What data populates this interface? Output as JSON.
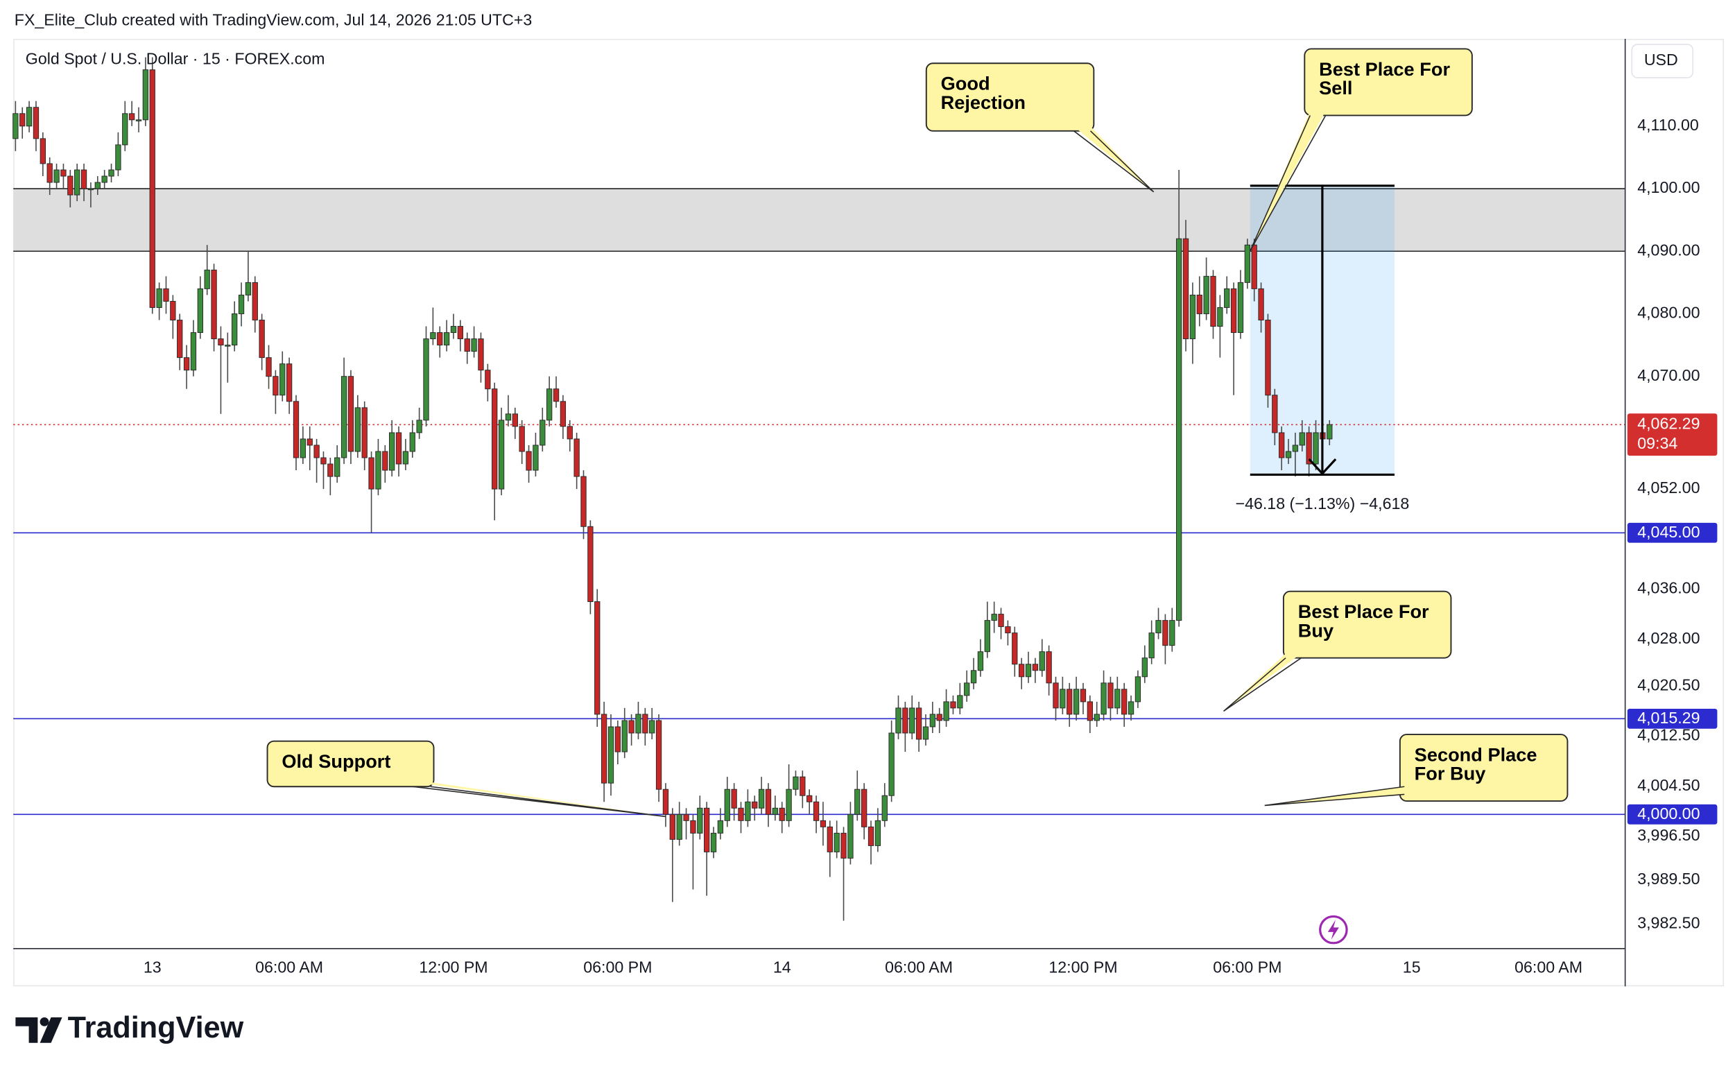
{
  "header": {
    "caption": "FX_Elite_Club created with TradingView.com, Jul 14, 2026 21:05 UTC+3"
  },
  "footer": {
    "brand": "TradingView"
  },
  "chart_data": {
    "type": "candlestick",
    "title": "Gold Spot / U.S. Dollar · 15 · FOREX.com",
    "currency": "USD",
    "up_color": "#3b8c3b",
    "down_color": "#c62828",
    "level_color": "#2b2bd0",
    "last_color": "#d32f2f",
    "zone_color": "#dedede",
    "grid": false,
    "xlim": [
      -0.32,
      235.2
    ],
    "ylim": [
      3978.55,
      4123.94
    ],
    "xticks": [
      {
        "value": 20,
        "label": "13"
      },
      {
        "value": 40,
        "label": "06:00 AM"
      },
      {
        "value": 64,
        "label": "12:00 PM"
      },
      {
        "value": 88,
        "label": "06:00 PM"
      },
      {
        "value": 112,
        "label": "14"
      },
      {
        "value": 132,
        "label": "06:00 AM"
      },
      {
        "value": 156,
        "label": "12:00 PM"
      },
      {
        "value": 180,
        "label": "06:00 PM"
      },
      {
        "value": 204,
        "label": "15"
      },
      {
        "value": 224,
        "label": "06:00 AM"
      }
    ],
    "yticks": [
      {
        "value": 4110,
        "label": "4,110.00"
      },
      {
        "value": 4100,
        "label": "4,100.00"
      },
      {
        "value": 4090,
        "label": "4,090.00"
      },
      {
        "value": 4080,
        "label": "4,080.00"
      },
      {
        "value": 4070,
        "label": "4,070.00"
      },
      {
        "value": 4052,
        "label": "4,052.00"
      },
      {
        "value": 4036,
        "label": "4,036.00"
      },
      {
        "value": 4028,
        "label": "4,028.00"
      },
      {
        "value": 4020.5,
        "label": "4,020.50"
      },
      {
        "value": 4012.5,
        "label": "4,012.50"
      },
      {
        "value": 4004.5,
        "label": "4,004.50"
      },
      {
        "value": 3996.5,
        "label": "3,996.50"
      },
      {
        "value": 3989.5,
        "label": "3,989.50"
      },
      {
        "value": 3982.5,
        "label": "3,982.50"
      }
    ],
    "zone": [
      4090,
      4100
    ],
    "levels": [
      {
        "value": 4045,
        "label": "4,045.00"
      },
      {
        "value": 4015.29,
        "label": "4,015.29"
      },
      {
        "value": 4000,
        "label": "4,000.00"
      }
    ],
    "last_price": {
      "value": 4062.29,
      "label": "4,062.29",
      "countdown": "09:34"
    },
    "measure": {
      "top": 4100.47,
      "bottom": 4054.29,
      "start": 180.4,
      "end": 201.5,
      "label": "−46.18 (−1.13%) −4,618"
    },
    "annotations": [
      "Good Rejection",
      "Best Place For Sell",
      "Best Place For Buy",
      "Second Place For Buy",
      "Old Support"
    ],
    "ohlc": [
      [
        4108,
        4114,
        4106,
        4112
      ],
      [
        4112,
        4113,
        4108,
        4110
      ],
      [
        4110,
        4114,
        4109,
        4113
      ],
      [
        4113,
        4114,
        4106,
        4108
      ],
      [
        4108,
        4109,
        4102,
        4104
      ],
      [
        4104,
        4105,
        4099,
        4101
      ],
      [
        4101,
        4104,
        4100,
        4103
      ],
      [
        4103,
        4104,
        4100,
        4102
      ],
      [
        4102,
        4103,
        4097,
        4099
      ],
      [
        4099,
        4104,
        4098,
        4103
      ],
      [
        4103,
        4104,
        4098,
        4100
      ],
      [
        4100,
        4101,
        4097,
        4100
      ],
      [
        4100,
        4102,
        4099,
        4101
      ],
      [
        4101,
        4103,
        4100,
        4102
      ],
      [
        4102,
        4104,
        4101,
        4103
      ],
      [
        4103,
        4109,
        4102,
        4107
      ],
      [
        4107,
        4114,
        4106,
        4112
      ],
      [
        4112,
        4114,
        4110,
        4111
      ],
      [
        4111,
        4113,
        4109,
        4111
      ],
      [
        4111,
        4121,
        4110,
        4119
      ],
      [
        4119,
        4121,
        4080,
        4081
      ],
      [
        4081,
        4085,
        4079,
        4084
      ],
      [
        4084,
        4086,
        4080,
        4082
      ],
      [
        4082,
        4083,
        4076,
        4079
      ],
      [
        4079,
        4080,
        4071,
        4073
      ],
      [
        4073,
        4075,
        4068,
        4071
      ],
      [
        4071,
        4079,
        4070,
        4077
      ],
      [
        4077,
        4086,
        4076,
        4084
      ],
      [
        4084,
        4091,
        4083,
        4087
      ],
      [
        4087,
        4088,
        4074,
        4076
      ],
      [
        4076,
        4078,
        4064,
        4075
      ],
      [
        4075,
        4077,
        4069,
        4075
      ],
      [
        4075,
        4082,
        4074,
        4080
      ],
      [
        4080,
        4085,
        4078,
        4083
      ],
      [
        4083,
        4090,
        4082,
        4085
      ],
      [
        4085,
        4086,
        4077,
        4079
      ],
      [
        4079,
        4080,
        4071,
        4073
      ],
      [
        4073,
        4075,
        4068,
        4070
      ],
      [
        4070,
        4071,
        4064,
        4067
      ],
      [
        4067,
        4074,
        4066,
        4072
      ],
      [
        4072,
        4073,
        4064,
        4066
      ],
      [
        4066,
        4067,
        4055,
        4057
      ],
      [
        4057,
        4062,
        4056,
        4060
      ],
      [
        4060,
        4062,
        4055,
        4059
      ],
      [
        4059,
        4060,
        4053,
        4057
      ],
      [
        4057,
        4058,
        4052,
        4056
      ],
      [
        4056,
        4057,
        4051,
        4054
      ],
      [
        4054,
        4059,
        4053,
        4057
      ],
      [
        4057,
        4073,
        4056,
        4070
      ],
      [
        4070,
        4071,
        4056,
        4058
      ],
      [
        4058,
        4067,
        4057,
        4065
      ],
      [
        4065,
        4066,
        4055,
        4057
      ],
      [
        4057,
        4058,
        4045,
        4052
      ],
      [
        4052,
        4060,
        4051,
        4058
      ],
      [
        4058,
        4059,
        4053,
        4055
      ],
      [
        4055,
        4063,
        4054,
        4061
      ],
      [
        4061,
        4062,
        4054,
        4056
      ],
      [
        4056,
        4060,
        4055,
        4058
      ],
      [
        4058,
        4063,
        4057,
        4061
      ],
      [
        4061,
        4065,
        4060,
        4063
      ],
      [
        4063,
        4078,
        4062,
        4076
      ],
      [
        4076,
        4081,
        4075,
        4077
      ],
      [
        4077,
        4078,
        4073,
        4075
      ],
      [
        4075,
        4079,
        4074,
        4077
      ],
      [
        4077,
        4080,
        4076,
        4078
      ],
      [
        4078,
        4079,
        4074,
        4076
      ],
      [
        4076,
        4077,
        4072,
        4074
      ],
      [
        4074,
        4078,
        4073,
        4076
      ],
      [
        4076,
        4077,
        4069,
        4071
      ],
      [
        4071,
        4072,
        4066,
        4068
      ],
      [
        4068,
        4069,
        4047,
        4052
      ],
      [
        4052,
        4065,
        4051,
        4063
      ],
      [
        4063,
        4067,
        4062,
        4064
      ],
      [
        4064,
        4065,
        4060,
        4062
      ],
      [
        4062,
        4063,
        4056,
        4058
      ],
      [
        4058,
        4059,
        4053,
        4055
      ],
      [
        4055,
        4061,
        4054,
        4059
      ],
      [
        4059,
        4065,
        4058,
        4063
      ],
      [
        4063,
        4070,
        4062,
        4068
      ],
      [
        4068,
        4070,
        4065,
        4066
      ],
      [
        4066,
        4067,
        4060,
        4062
      ],
      [
        4062,
        4063,
        4058,
        4060
      ],
      [
        4060,
        4061,
        4052,
        4054
      ],
      [
        4054,
        4055,
        4044,
        4046
      ],
      [
        4046,
        4047,
        4032,
        4034
      ],
      [
        4034,
        4036,
        4014,
        4016
      ],
      [
        4016,
        4018,
        4002,
        4005
      ],
      [
        4005,
        4016,
        4003,
        4014
      ],
      [
        4014,
        4015,
        4008,
        4010
      ],
      [
        4010,
        4017,
        4009,
        4015
      ],
      [
        4015,
        4016,
        4011,
        4013
      ],
      [
        4013,
        4018,
        4012,
        4016
      ],
      [
        4016,
        4017,
        4011,
        4013
      ],
      [
        4013,
        4017,
        4012,
        4015
      ],
      [
        4015,
        4016,
        4002,
        4004
      ],
      [
        4004,
        4005,
        3998,
        4000
      ],
      [
        4000,
        4001,
        3986,
        3996
      ],
      [
        3996,
        4002,
        3995,
        4000
      ],
      [
        4000,
        4001,
        3996,
        3999
      ],
      [
        3999,
        4000,
        3988,
        3997
      ],
      [
        3997,
        4003,
        3996,
        4001
      ],
      [
        4001,
        4002,
        3987,
        3994
      ],
      [
        3994,
        3998,
        3993,
        3997
      ],
      [
        3997,
        4001,
        3996,
        3999
      ],
      [
        3999,
        4006,
        3998,
        4004
      ],
      [
        4004,
        4005,
        3999,
        4001
      ],
      [
        4001,
        4002,
        3997,
        3999
      ],
      [
        3999,
        4004,
        3998,
        4002
      ],
      [
        4002,
        4003,
        3999,
        4001
      ],
      [
        4001,
        4006,
        4000,
        4004
      ],
      [
        4004,
        4005,
        3998,
        4000
      ],
      [
        4000,
        4003,
        3999,
        4001
      ],
      [
        4001,
        4002,
        3997,
        3999
      ],
      [
        3999,
        4008,
        3998,
        4004
      ],
      [
        4004,
        4007,
        4003,
        4006
      ],
      [
        4006,
        4007,
        4001,
        4003
      ],
      [
        4003,
        4004,
        4000,
        4002
      ],
      [
        4002,
        4003,
        3997,
        3999
      ],
      [
        3999,
        4002,
        3995,
        3998
      ],
      [
        3998,
        3999,
        3990,
        3994
      ],
      [
        3994,
        3999,
        3993,
        3997
      ],
      [
        3997,
        3998,
        3983,
        3993
      ],
      [
        3993,
        4002,
        3992,
        4000
      ],
      [
        4000,
        4007,
        3999,
        4004
      ],
      [
        4004,
        4005,
        3996,
        3998
      ],
      [
        3998,
        3999,
        3992,
        3995
      ],
      [
        3995,
        4001,
        3994,
        3999
      ],
      [
        3999,
        4005,
        3998,
        4003
      ],
      [
        4003,
        4015,
        4002,
        4013
      ],
      [
        4013,
        4019,
        4012,
        4017
      ],
      [
        4017,
        4018,
        4010,
        4013
      ],
      [
        4013,
        4019,
        4012,
        4017
      ],
      [
        4017,
        4018,
        4010,
        4012
      ],
      [
        4012,
        4016,
        4011,
        4014
      ],
      [
        4014,
        4018,
        4013,
        4016
      ],
      [
        4016,
        4017,
        4013,
        4015
      ],
      [
        4015,
        4020,
        4014,
        4018
      ],
      [
        4018,
        4019,
        4016,
        4017
      ],
      [
        4017,
        4021,
        4016,
        4019
      ],
      [
        4019,
        4023,
        4018,
        4021
      ],
      [
        4021,
        4025,
        4020,
        4023
      ],
      [
        4023,
        4028,
        4022,
        4026
      ],
      [
        4026,
        4034,
        4025,
        4031
      ],
      [
        4031,
        4034,
        4029,
        4032
      ],
      [
        4032,
        4033,
        4028,
        4030
      ],
      [
        4030,
        4031,
        4027,
        4029
      ],
      [
        4029,
        4030,
        4022,
        4024
      ],
      [
        4024,
        4025,
        4020,
        4022
      ],
      [
        4022,
        4026,
        4021,
        4024
      ],
      [
        4024,
        4025,
        4021,
        4023
      ],
      [
        4023,
        4028,
        4022,
        4026
      ],
      [
        4026,
        4027,
        4019,
        4021
      ],
      [
        4021,
        4022,
        4015,
        4017
      ],
      [
        4017,
        4022,
        4016,
        4020
      ],
      [
        4020,
        4021,
        4014,
        4016
      ],
      [
        4016,
        4022,
        4015,
        4020
      ],
      [
        4020,
        4021,
        4016,
        4018
      ],
      [
        4018,
        4019,
        4013,
        4015
      ],
      [
        4015,
        4018,
        4014,
        4016
      ],
      [
        4016,
        4023,
        4015,
        4021
      ],
      [
        4021,
        4022,
        4015,
        4017
      ],
      [
        4017,
        4022,
        4016,
        4020
      ],
      [
        4020,
        4021,
        4014,
        4016
      ],
      [
        4016,
        4019,
        4015,
        4018
      ],
      [
        4018,
        4023,
        4017,
        4022
      ],
      [
        4022,
        4027,
        4021,
        4025
      ],
      [
        4025,
        4031,
        4024,
        4029
      ],
      [
        4029,
        4033,
        4028,
        4031
      ],
      [
        4031,
        4032,
        4024,
        4027
      ],
      [
        4027,
        4033,
        4026,
        4031
      ],
      [
        4031,
        4103,
        4030,
        4092
      ],
      [
        4092,
        4095,
        4074,
        4076
      ],
      [
        4076,
        4085,
        4072,
        4083
      ],
      [
        4083,
        4086,
        4078,
        4080
      ],
      [
        4080,
        4089,
        4079,
        4086
      ],
      [
        4086,
        4087,
        4076,
        4078
      ],
      [
        4078,
        4083,
        4073,
        4081
      ],
      [
        4081,
        4086,
        4080,
        4084
      ],
      [
        4084,
        4085,
        4067,
        4077
      ],
      [
        4077,
        4087,
        4076,
        4085
      ],
      [
        4085,
        4092,
        4084,
        4091
      ],
      [
        4091,
        4092,
        4082,
        4084
      ],
      [
        4084,
        4085,
        4077,
        4079
      ],
      [
        4079,
        4080,
        4065,
        4067
      ],
      [
        4067,
        4068,
        4059,
        4061
      ],
      [
        4061,
        4062,
        4055,
        4057
      ],
      [
        4057,
        4060,
        4056,
        4058
      ],
      [
        4058,
        4061,
        4054,
        4059
      ],
      [
        4059,
        4063,
        4058,
        4061
      ],
      [
        4061,
        4062,
        4054,
        4056
      ],
      [
        4056,
        4063,
        4055,
        4061
      ],
      [
        4061,
        4063,
        4059,
        4060
      ],
      [
        4060,
        4063,
        4059,
        4062.29
      ]
    ]
  }
}
